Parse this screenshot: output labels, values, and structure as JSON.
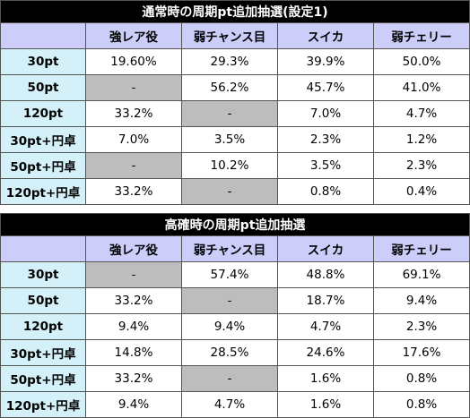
{
  "tables": [
    {
      "title": "通常時の周期pt追加抽選(設定1)",
      "columns": [
        "",
        "強レア役",
        "弱チャンス目",
        "スイカ",
        "弱チェリー"
      ],
      "rows": [
        {
          "label": "30pt",
          "cells": [
            {
              "v": "19.60%"
            },
            {
              "v": "29.3%"
            },
            {
              "v": "39.9%"
            },
            {
              "v": "50.0%"
            }
          ]
        },
        {
          "label": "50pt",
          "cells": [
            {
              "v": "-",
              "gray": true
            },
            {
              "v": "56.2%"
            },
            {
              "v": "45.7%"
            },
            {
              "v": "41.0%"
            }
          ]
        },
        {
          "label": "120pt",
          "cells": [
            {
              "v": "33.2%"
            },
            {
              "v": "-",
              "gray": true
            },
            {
              "v": "7.0%"
            },
            {
              "v": "4.7%"
            }
          ]
        },
        {
          "label": "30pt+円卓",
          "cells": [
            {
              "v": "7.0%"
            },
            {
              "v": "3.5%"
            },
            {
              "v": "2.3%"
            },
            {
              "v": "1.2%"
            }
          ]
        },
        {
          "label": "50pt+円卓",
          "cells": [
            {
              "v": "-",
              "gray": true
            },
            {
              "v": "10.2%"
            },
            {
              "v": "3.5%"
            },
            {
              "v": "2.3%"
            }
          ]
        },
        {
          "label": "120pt+円卓",
          "cells": [
            {
              "v": "33.2%"
            },
            {
              "v": "-",
              "gray": true
            },
            {
              "v": "0.8%"
            },
            {
              "v": "0.4%"
            }
          ]
        }
      ]
    },
    {
      "title": "高確時の周期pt追加抽選",
      "columns": [
        "",
        "強レア役",
        "弱チャンス目",
        "スイカ",
        "弱チェリー"
      ],
      "rows": [
        {
          "label": "30pt",
          "cells": [
            {
              "v": "-",
              "gray": true
            },
            {
              "v": "57.4%"
            },
            {
              "v": "48.8%"
            },
            {
              "v": "69.1%"
            }
          ]
        },
        {
          "label": "50pt",
          "cells": [
            {
              "v": "33.2%"
            },
            {
              "v": "-",
              "gray": true
            },
            {
              "v": "18.7%"
            },
            {
              "v": "9.4%"
            }
          ]
        },
        {
          "label": "120pt",
          "cells": [
            {
              "v": "9.4%"
            },
            {
              "v": "9.4%"
            },
            {
              "v": "4.7%"
            },
            {
              "v": "2.3%"
            }
          ]
        },
        {
          "label": "30pt+円卓",
          "cells": [
            {
              "v": "14.8%"
            },
            {
              "v": "28.5%"
            },
            {
              "v": "24.6%"
            },
            {
              "v": "17.6%"
            }
          ]
        },
        {
          "label": "50pt+円卓",
          "cells": [
            {
              "v": "33.2%"
            },
            {
              "v": "-",
              "gray": true
            },
            {
              "v": "1.6%"
            },
            {
              "v": "0.8%"
            }
          ]
        },
        {
          "label": "120pt+円卓",
          "cells": [
            {
              "v": "9.4%"
            },
            {
              "v": "4.7%"
            },
            {
              "v": "1.6%"
            },
            {
              "v": "0.8%"
            }
          ]
        }
      ]
    }
  ],
  "colors": {
    "title_bg": "#000000",
    "header_bg": "#cccdf9",
    "rowlabel_bg": "#d4f1f9",
    "gray_cell": "#bdbdbd"
  }
}
